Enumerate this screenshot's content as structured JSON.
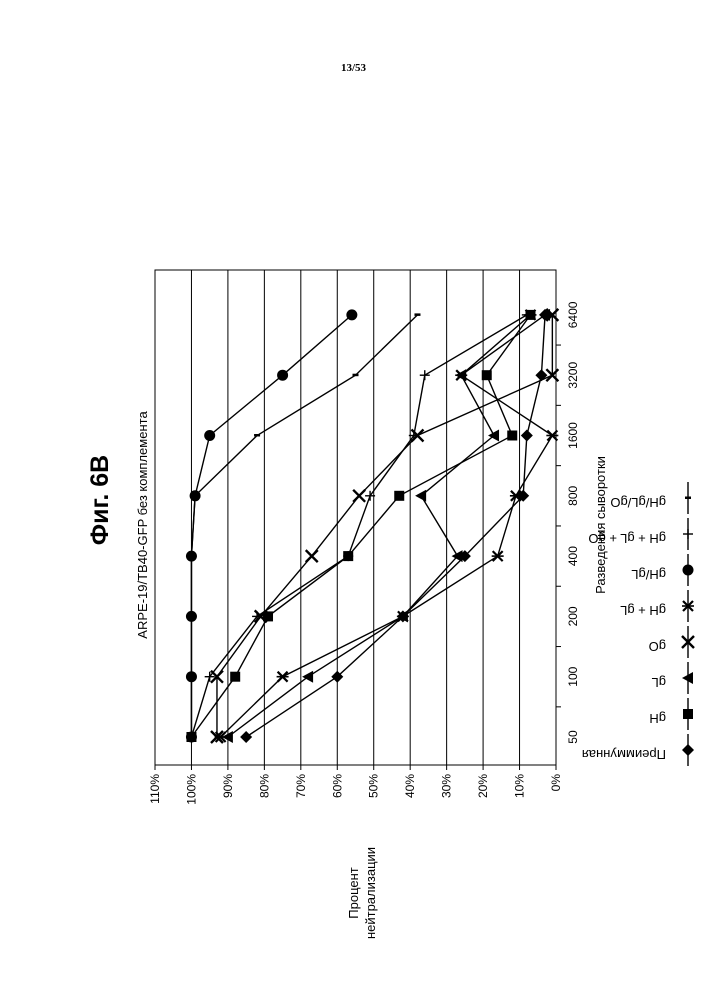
{
  "page_number": "13/53",
  "figure_label": "Фиг. 6B",
  "chart_data": {
    "type": "line",
    "title": "ARPE-19/TB40-GFP без комплемента",
    "xlabel": "Разведения сыворотки",
    "ylabel_lines": [
      "Процент",
      "нейтрализации"
    ],
    "categories": [
      "50",
      "100",
      "200",
      "400",
      "800",
      "1600",
      "3200",
      "6400"
    ],
    "y_ticks": [
      "0%",
      "10%",
      "20%",
      "30%",
      "40%",
      "50%",
      "60%",
      "70%",
      "80%",
      "90%",
      "100%",
      "110%"
    ],
    "ylim": [
      0,
      110
    ],
    "grid": "horizontal",
    "legend_placement": "right",
    "series": [
      {
        "name": "Преиммунная",
        "marker": "diamond",
        "values": [
          85,
          60,
          42,
          25,
          9,
          8,
          4,
          3
        ]
      },
      {
        "name": "gH",
        "marker": "square",
        "values": [
          100,
          88,
          79,
          57,
          43,
          12,
          19,
          7
        ]
      },
      {
        "name": "gL",
        "marker": "triangle",
        "values": [
          90,
          68,
          42,
          27,
          37,
          17,
          26,
          3
        ]
      },
      {
        "name": "gO",
        "marker": "x",
        "values": [
          93,
          93,
          81,
          67,
          54,
          38,
          1,
          1
        ]
      },
      {
        "name": "gH + gL",
        "marker": "star",
        "values": [
          92,
          75,
          42,
          16,
          11,
          1,
          26,
          7
        ]
      },
      {
        "name": "gH/gL",
        "marker": "circle",
        "values": [
          100,
          100,
          100,
          100,
          99,
          95,
          75,
          56
        ]
      },
      {
        "name": "gH + gL + gO",
        "marker": "plus",
        "values": [
          100,
          95,
          82,
          57,
          51,
          39,
          36,
          8
        ]
      },
      {
        "name": "gH/gL/gO",
        "marker": "dash",
        "values": [
          100,
          100,
          100,
          100,
          99,
          82,
          55,
          38
        ]
      }
    ]
  }
}
